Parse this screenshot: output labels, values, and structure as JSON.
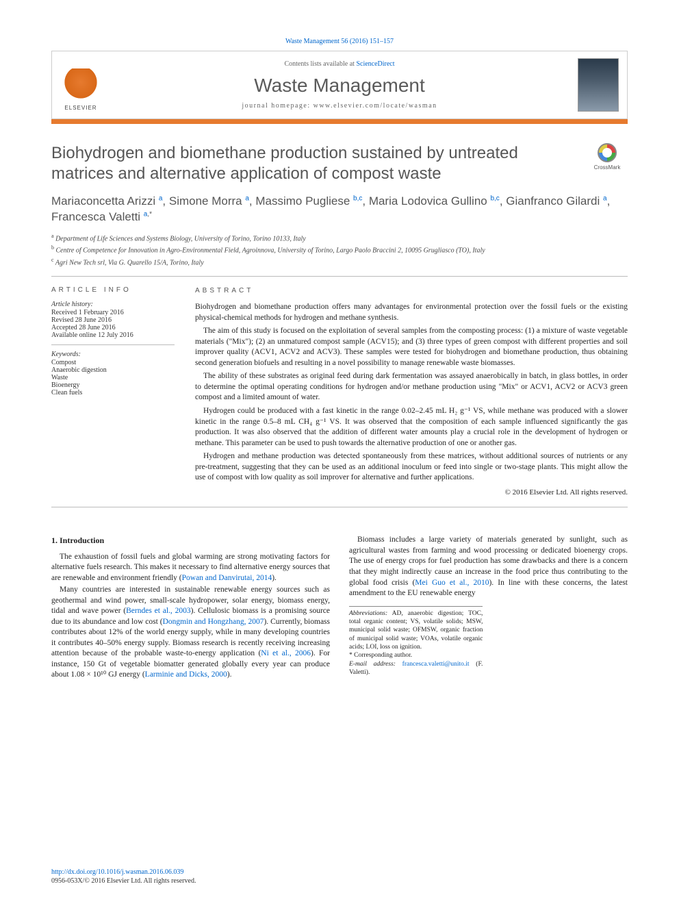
{
  "top_citation": "Waste Management 56 (2016) 151–157",
  "header": {
    "contents_prefix": "Contents lists available at ",
    "contents_link": "ScienceDirect",
    "journal": "Waste Management",
    "homepage_prefix": "journal homepage: ",
    "homepage": "www.elsevier.com/locate/wasman",
    "publisher": "ELSEVIER"
  },
  "crossmark": "CrossMark",
  "title": "Biohydrogen and biomethane production sustained by untreated matrices and alternative application of compost waste",
  "authors_html": "Mariaconcetta Arizzi|a|, Simone Morra|a|, Massimo Pugliese|b,c|, Maria Lodovica Gullino|b,c|, Gianfranco Gilardi|a|, Francesca Valetti|a,*|",
  "authors": [
    {
      "name": "Mariaconcetta Arizzi",
      "aff": "a"
    },
    {
      "name": "Simone Morra",
      "aff": "a"
    },
    {
      "name": "Massimo Pugliese",
      "aff": "b,c"
    },
    {
      "name": "Maria Lodovica Gullino",
      "aff": "b,c"
    },
    {
      "name": "Gianfranco Gilardi",
      "aff": "a"
    },
    {
      "name": "Francesca Valetti",
      "aff": "a,*"
    }
  ],
  "affiliations": [
    {
      "sup": "a",
      "text": "Department of Life Sciences and Systems Biology, University of Torino, Torino 10133, Italy"
    },
    {
      "sup": "b",
      "text": "Centre of Competence for Innovation in Agro-Environmental Field, Agroinnova, University of Torino, Largo Paolo Braccini 2, 10095 Grugliasco (TO), Italy"
    },
    {
      "sup": "c",
      "text": "Agri New Tech srl, Via G. Quarello 15/A, Torino, Italy"
    }
  ],
  "info": {
    "label": "article info",
    "history_hdr": "Article history:",
    "history": [
      "Received 1 February 2016",
      "Revised 28 June 2016",
      "Accepted 28 June 2016",
      "Available online 12 July 2016"
    ],
    "keywords_hdr": "Keywords:",
    "keywords": [
      "Compost",
      "Anaerobic digestion",
      "Waste",
      "Bioenergy",
      "Clean fuels"
    ]
  },
  "abstract": {
    "label": "abstract",
    "paragraphs": [
      "Biohydrogen and biomethane production offers many advantages for environmental protection over the fossil fuels or the existing physical-chemical methods for hydrogen and methane synthesis.",
      "The aim of this study is focused on the exploitation of several samples from the composting process: (1) a mixture of waste vegetable materials (\"Mix\"); (2) an unmatured compost sample (ACV15); and (3) three types of green compost with different properties and soil improver quality (ACV1, ACV2 and ACV3). These samples were tested for biohydrogen and biomethane production, thus obtaining second generation biofuels and resulting in a novel possibility to manage renewable waste biomasses.",
      "The ability of these substrates as original feed during dark fermentation was assayed anaerobically in batch, in glass bottles, in order to determine the optimal operating conditions for hydrogen and/or methane production using \"Mix\" or ACV1, ACV2 or ACV3 green compost and a limited amount of water.",
      "Hydrogen could be produced with a fast kinetic in the range 0.02–2.45 mL H₂ g⁻¹ VS, while methane was produced with a slower kinetic in the range 0.5–8 mL CH₄ g⁻¹ VS. It was observed that the composition of each sample influenced significantly the gas production. It was also observed that the addition of different water amounts play a crucial role in the development of hydrogen or methane. This parameter can be used to push towards the alternative production of one or another gas.",
      "Hydrogen and methane production was detected spontaneously from these matrices, without additional sources of nutrients or any pre-treatment, suggesting that they can be used as an additional inoculum or feed into single or two-stage plants. This might allow the use of compost with low quality as soil improver for alternative and further applications."
    ],
    "copyright": "© 2016 Elsevier Ltd. All rights reserved."
  },
  "body": {
    "section_num": "1.",
    "section_title": "Introduction",
    "p1": "The exhaustion of fossil fuels and global warming are strong motivating factors for alternative fuels research. This makes it necessary to find alternative energy sources that are renewable and environment friendly (",
    "p1_cite": "Powan and Danvirutai, 2014",
    "p1_end": ").",
    "p2a": "Many countries are interested in sustainable renewable energy sources such as geothermal and wind power, small-scale hydropower, solar energy, biomass energy, tidal and wave power (",
    "p2_cite1": "Berndes et al., 2003",
    "p2b": "). Cellulosic biomass is a promising source due to its abundance and low cost (",
    "p2_cite2": "Dongmin and Hongzhang, 2007",
    "p2c": "). Currently, biomass contributes about 12% of the world energy supply, while in many developing countries it contributes 40–50% energy supply. Biomass research is recently receiving increasing attention because of the probable waste-to-energy application (",
    "p2_cite3": "Ni et al., 2006",
    "p2d": "). For instance, 150 Gt of vegetable biomatter generated globally every year can produce about 1.08 × 10¹⁰ GJ energy (",
    "p2_cite4": "Larminie and Dicks, 2000",
    "p2e": ").",
    "p3a": "Biomass includes a large variety of materials generated by sunlight, such as agricultural wastes from farming and wood processing or dedicated bioenergy crops. The use of energy crops for fuel production has some drawbacks and there is a concern that they might indirectly cause an increase in the food price thus contributing to the global food crisis (",
    "p3_cite": "Mei Guo et al., 2010",
    "p3b": "). In line with these concerns, the latest amendment to the EU renewable energy"
  },
  "footnotes": {
    "abbr_label": "Abbreviations:",
    "abbr": " AD, anaerobic digestion; TOC, total organic content; VS, volatile solids; MSW, municipal solid waste; OFMSW, organic fraction of municipal solid waste; VOAs, volatile organic acids; LOI, loss on ignition.",
    "corr_mark": "*",
    "corr": " Corresponding author.",
    "email_label": "E-mail address:",
    "email": " francesca.valetti@unito.it",
    "email_name": " (F. Valetti)."
  },
  "doi": {
    "url": "http://dx.doi.org/10.1016/j.wasman.2016.06.039",
    "issn_line": "0956-053X/© 2016 Elsevier Ltd. All rights reserved."
  },
  "colors": {
    "link": "#0066cc",
    "accent": "#e67a2e",
    "text": "#333333",
    "rule": "#bbbbbb"
  }
}
